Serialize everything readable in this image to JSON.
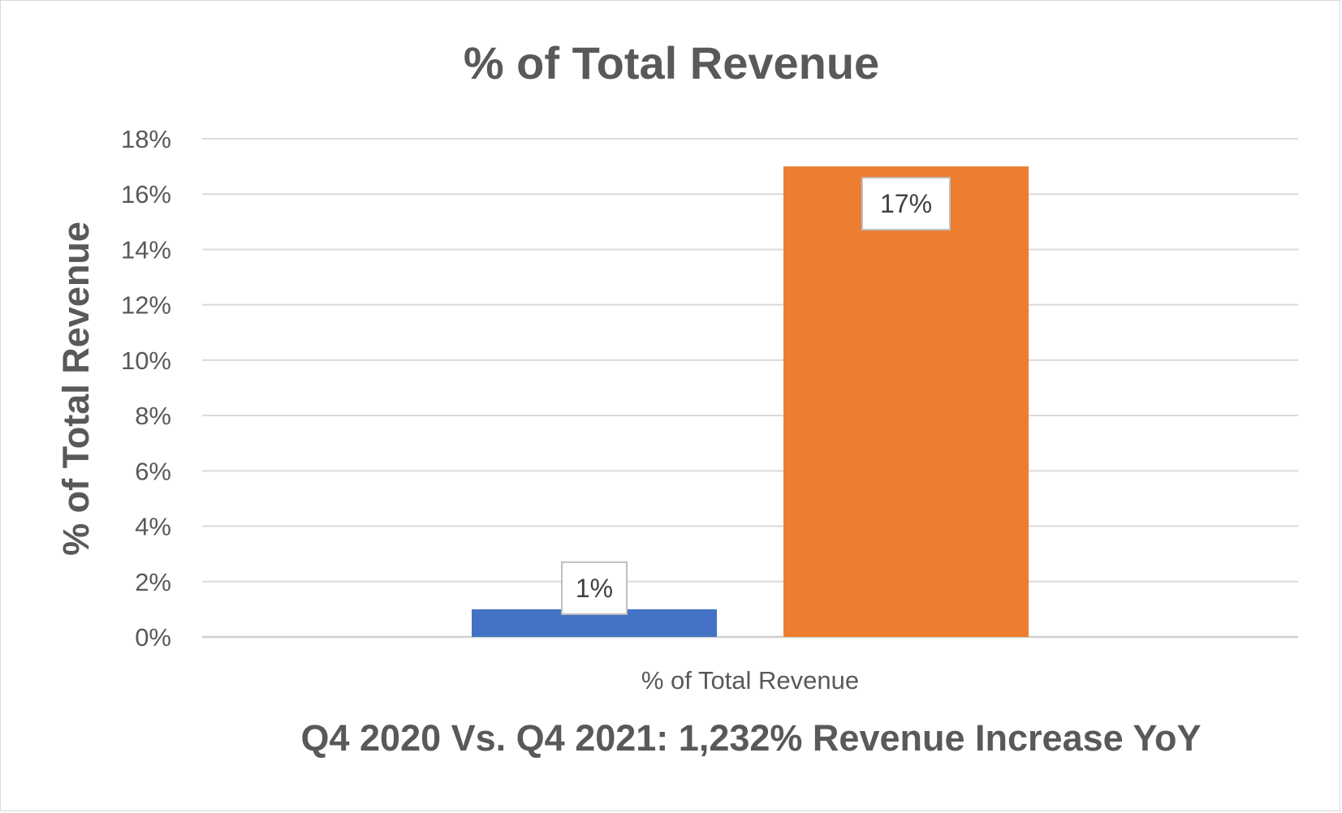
{
  "chart_data": {
    "type": "bar",
    "title": "% of Total Revenue",
    "subtitle": "Q4 2020 Vs. Q4 2021: 1,232% Revenue Increase YoY",
    "ylabel": "% of  Total Revenue",
    "xlabel": "",
    "categories": [
      "% of Total Revenue"
    ],
    "series": [
      {
        "name": "",
        "values": [
          1
        ],
        "color": "#4472C4",
        "data_label": "1%"
      },
      {
        "name": "",
        "values": [
          17
        ],
        "color": "#ED7D31",
        "data_label": "17%"
      }
    ],
    "ylim": [
      0,
      18
    ],
    "y_ticks": [
      0,
      2,
      4,
      6,
      8,
      10,
      12,
      14,
      16,
      18
    ],
    "y_tick_labels": [
      "0%",
      "2%",
      "4%",
      "6%",
      "8%",
      "10%",
      "12%",
      "14%",
      "16%",
      "18%"
    ],
    "grid": true,
    "legend": "none"
  }
}
